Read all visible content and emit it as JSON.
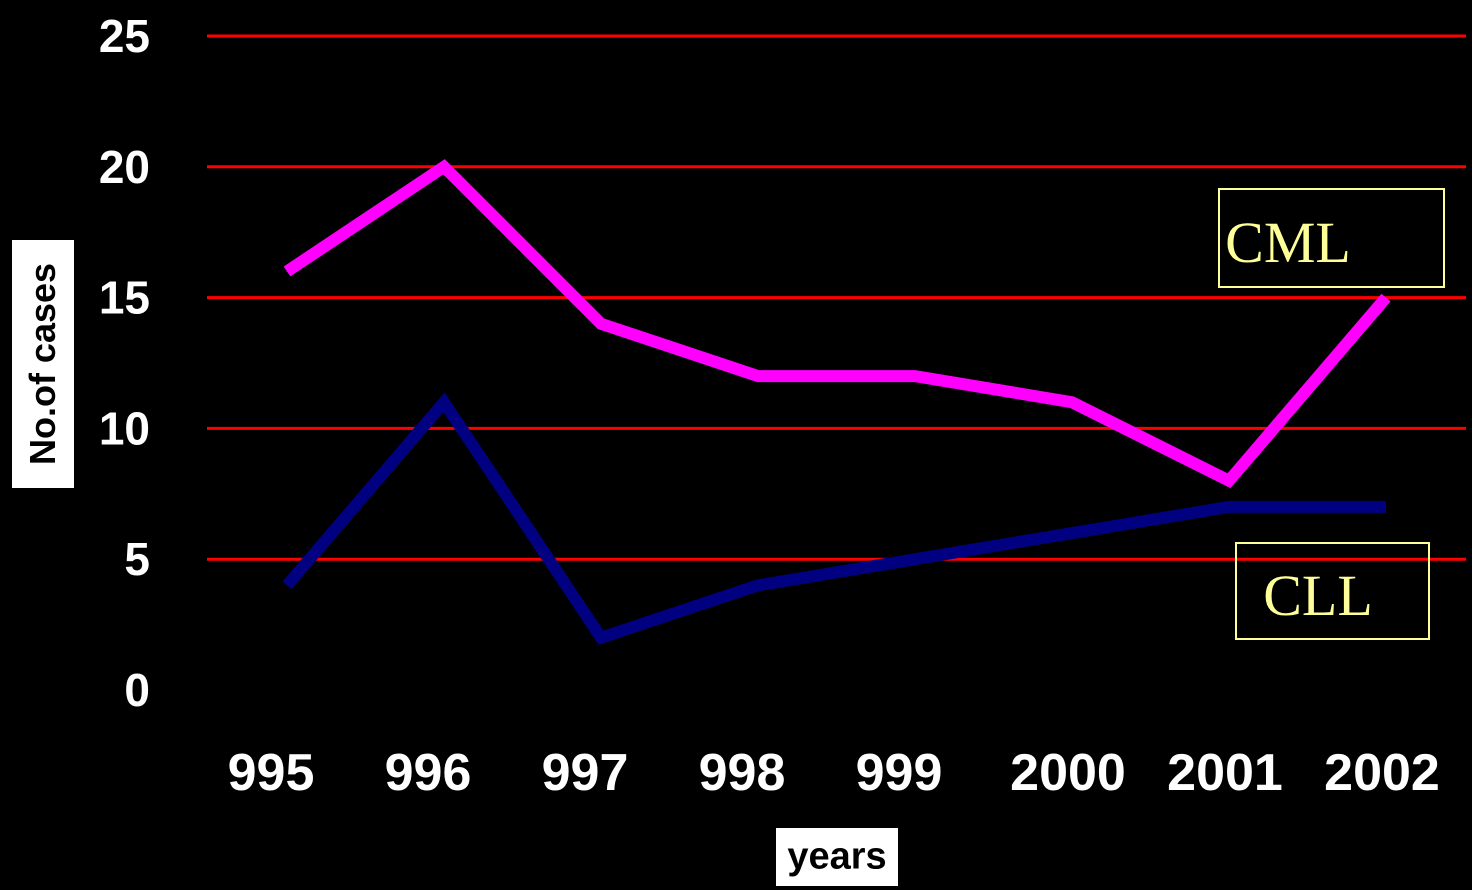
{
  "chart_data": {
    "type": "line",
    "xlabel": "years",
    "ylabel": "No.of cases",
    "categories": [
      "995",
      "996",
      "997",
      "998",
      "999",
      "2000",
      "2001",
      "2002"
    ],
    "yticks": [
      "0",
      "5",
      "10",
      "15",
      "20",
      "25"
    ],
    "ylim": [
      0,
      25
    ],
    "grid": true,
    "colors": {
      "gridline": "#ff0000",
      "background": "#000000",
      "label_text": "#ffff99",
      "label_border": "#ffff99"
    },
    "series": [
      {
        "name": "CML",
        "color": "#ff00ff",
        "values": [
          16,
          20,
          14,
          12,
          12,
          11,
          8,
          15
        ]
      },
      {
        "name": "CLL",
        "color": "#000080",
        "values": [
          4,
          11,
          2,
          4,
          5,
          6,
          7,
          7
        ]
      }
    ]
  }
}
